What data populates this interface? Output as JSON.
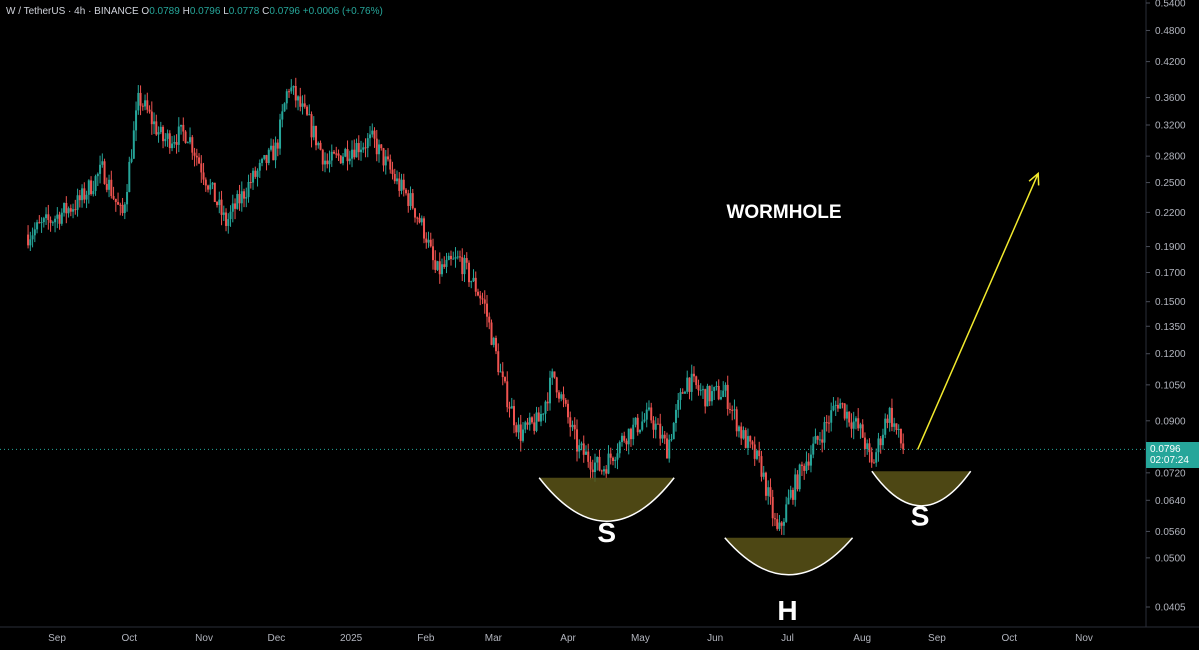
{
  "header": {
    "symbol": "W / TetherUS · 4h · BINANCE",
    "open_label": "O",
    "open": "0.0789",
    "high_label": "H",
    "high": "0.0796",
    "low_label": "L",
    "low": "0.0778",
    "close_label": "C",
    "close": "0.0796",
    "change": "+0.0006 (+0.76%)"
  },
  "last_price": {
    "value": "0.0796",
    "countdown": "02:07:24"
  },
  "colors": {
    "up": "#26a69a",
    "down": "#ef5350",
    "pattern_fill": "#5a5418",
    "arrow": "#f2ea2d",
    "last_line": "#26a69a"
  },
  "chart_data": {
    "type": "candlestick",
    "scale": "log",
    "ylim": [
      0.036,
      0.54
    ],
    "y_ticks": [
      "0.5400",
      "0.4800",
      "0.4200",
      "0.3600",
      "0.3200",
      "0.2800",
      "0.2500",
      "0.2200",
      "0.1900",
      "0.1700",
      "0.1500",
      "0.1350",
      "0.1200",
      "0.1050",
      "0.0900",
      "0.0720",
      "0.0640",
      "0.0560",
      "0.0500",
      "0.0405"
    ],
    "x_ticks": [
      "Sep",
      "Oct",
      "Nov",
      "Dec",
      "2025",
      "Feb",
      "Mar",
      "Apr",
      "May",
      "Jun",
      "Jul",
      "Aug",
      "Sep",
      "Oct",
      "Nov"
    ],
    "trend_points": [
      [
        "2024-08-20",
        0.2
      ],
      [
        "2024-09-10",
        0.23
      ],
      [
        "2024-09-20",
        0.265
      ],
      [
        "2024-09-28",
        0.215
      ],
      [
        "2024-10-05",
        0.36
      ],
      [
        "2024-10-15",
        0.3
      ],
      [
        "2024-10-25",
        0.31
      ],
      [
        "2024-11-01",
        0.26
      ],
      [
        "2024-11-10",
        0.21
      ],
      [
        "2024-11-20",
        0.25
      ],
      [
        "2024-12-01",
        0.29
      ],
      [
        "2024-12-06",
        0.38
      ],
      [
        "2024-12-15",
        0.32
      ],
      [
        "2024-12-22",
        0.27
      ],
      [
        "2025-01-01",
        0.29
      ],
      [
        "2025-01-10",
        0.3
      ],
      [
        "2025-01-20",
        0.25
      ],
      [
        "2025-01-26",
        0.23
      ],
      [
        "2025-02-01",
        0.2
      ],
      [
        "2025-02-05",
        0.17
      ],
      [
        "2025-02-15",
        0.18
      ],
      [
        "2025-02-25",
        0.15
      ],
      [
        "2025-03-05",
        0.105
      ],
      [
        "2025-03-12",
        0.085
      ],
      [
        "2025-03-20",
        0.09
      ],
      [
        "2025-03-26",
        0.11
      ],
      [
        "2025-04-05",
        0.08
      ],
      [
        "2025-04-15",
        0.073
      ],
      [
        "2025-04-25",
        0.085
      ],
      [
        "2025-05-05",
        0.092
      ],
      [
        "2025-05-12",
        0.08
      ],
      [
        "2025-05-20",
        0.108
      ],
      [
        "2025-05-28",
        0.1
      ],
      [
        "2025-06-05",
        0.102
      ],
      [
        "2025-06-12",
        0.085
      ],
      [
        "2025-06-20",
        0.074
      ],
      [
        "2025-06-27",
        0.055
      ],
      [
        "2025-07-02",
        0.065
      ],
      [
        "2025-07-08",
        0.075
      ],
      [
        "2025-07-15",
        0.085
      ],
      [
        "2025-07-22",
        0.098
      ],
      [
        "2025-08-01",
        0.085
      ],
      [
        "2025-08-05",
        0.074
      ],
      [
        "2025-08-12",
        0.094
      ],
      [
        "2025-08-18",
        0.0796
      ]
    ],
    "candle_count": 390,
    "annotations": {
      "title": "WORMHOLE",
      "pattern_labels": [
        "S",
        "H",
        "S"
      ]
    }
  }
}
